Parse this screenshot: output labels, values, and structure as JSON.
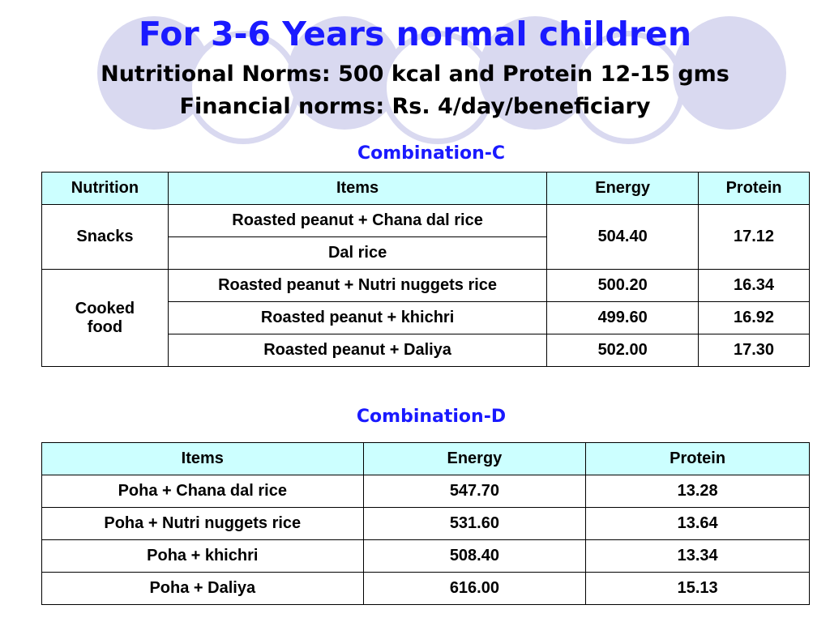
{
  "title": "For 3-6 Years normal children",
  "subtitles": [
    "Nutritional Norms: 500 kcal and Protein 12-15 gms",
    "Financial norms: Rs. 4/day/beneficiary"
  ],
  "combination_c": {
    "heading": "Combination-C",
    "headers": [
      "Nutrition",
      "Items",
      "Energy",
      "Protein"
    ],
    "snacks_label": "Snacks",
    "cooked_label_line1": "Cooked",
    "cooked_label_line2": "food",
    "rows": [
      {
        "item": "Roasted peanut + Chana dal rice",
        "energy": "504.40",
        "protein": "17.12"
      },
      {
        "item": "Dal rice"
      },
      {
        "item": "Roasted peanut + Nutri nuggets rice",
        "energy": "500.20",
        "protein": "16.34"
      },
      {
        "item": "Roasted peanut + khichri",
        "energy": "499.60",
        "protein": "16.92"
      },
      {
        "item": "Roasted peanut + Daliya",
        "energy": "502.00",
        "protein": "17.30"
      }
    ]
  },
  "combination_d": {
    "heading": "Combination-D",
    "headers": [
      "Items",
      "Energy",
      "Protein"
    ],
    "rows": [
      {
        "item": "Poha + Chana dal rice",
        "energy": "547.70",
        "protein": "13.28"
      },
      {
        "item": "Poha + Nutri nuggets rice",
        "energy": "531.60",
        "protein": "13.64"
      },
      {
        "item": "Poha + khichri",
        "energy": "508.40",
        "protein": "13.34"
      },
      {
        "item": "Poha + Daliya",
        "energy": "616.00",
        "protein": "15.13"
      }
    ]
  },
  "colors": {
    "accent": "#1a1aff",
    "header_fill": "#ccffff",
    "decor": "#d9d9f0"
  }
}
